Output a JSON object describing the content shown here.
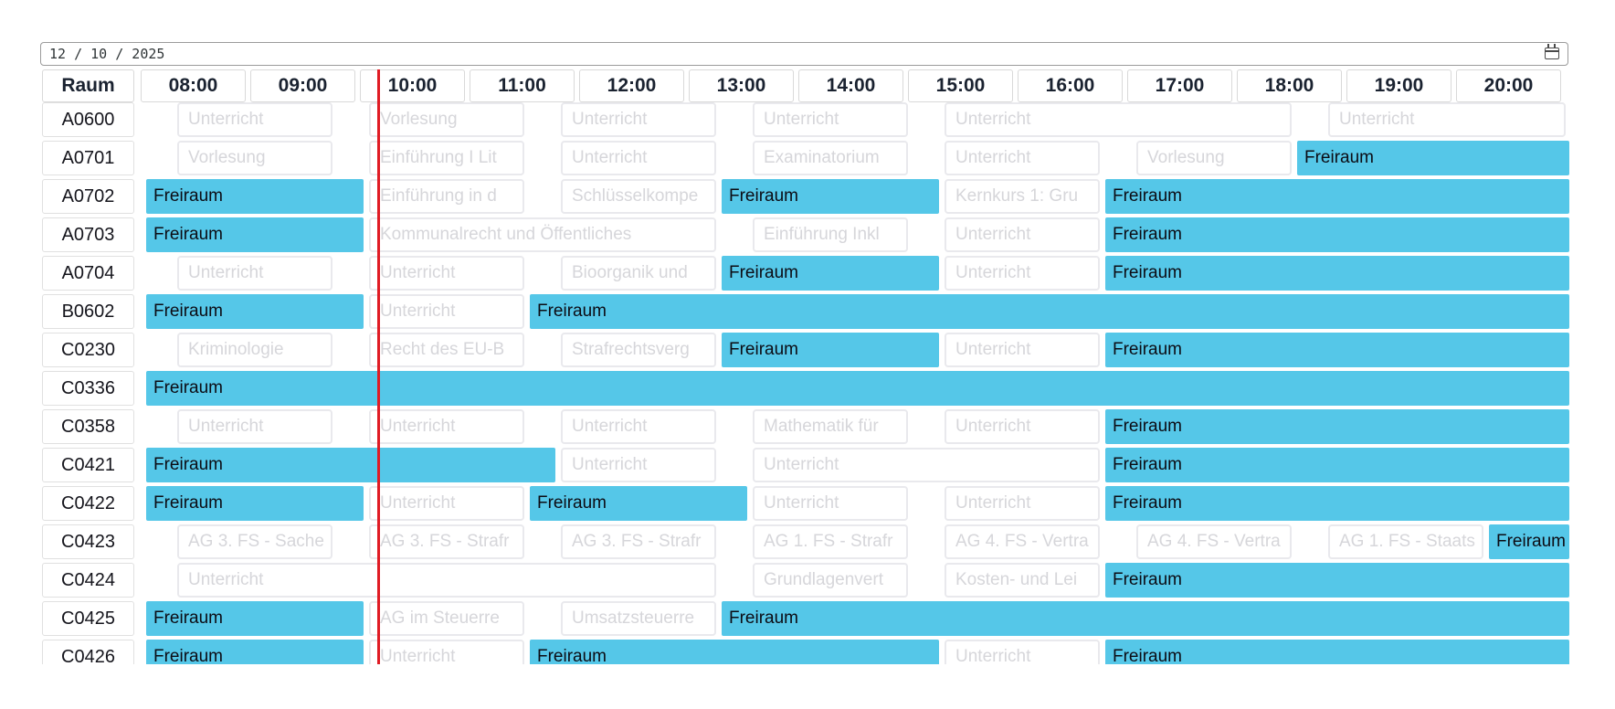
{
  "date_picker": {
    "value": "12 / 10 / 2025"
  },
  "colors": {
    "free_event": "#55c7e8",
    "now_line": "#e01b24",
    "busy_text": "#d6d6da",
    "busy_border": "#e9e9ed"
  },
  "schedule": {
    "room_column_label": "Raum",
    "time_labels": [
      "08:00",
      "09:00",
      "10:00",
      "11:00",
      "12:00",
      "13:00",
      "14:00",
      "15:00",
      "16:00",
      "17:00",
      "18:00",
      "19:00",
      "20:00"
    ],
    "timeline_start": "08:00",
    "timeline_end": "21:00",
    "now_marker_time": "10:07",
    "rooms": [
      {
        "name": "A0600",
        "events": [
          {
            "label": "Unterricht",
            "type": "busy",
            "start": "08:15",
            "end": "09:45"
          },
          {
            "label": "Vorlesung",
            "type": "busy",
            "start": "10:00",
            "end": "11:30"
          },
          {
            "label": "Unterricht",
            "type": "busy",
            "start": "11:45",
            "end": "13:15"
          },
          {
            "label": "Unterricht",
            "type": "busy",
            "start": "13:30",
            "end": "15:00"
          },
          {
            "label": "Unterricht",
            "type": "busy",
            "start": "15:15",
            "end": "18:30"
          },
          {
            "label": "Unterricht",
            "type": "busy",
            "start": "18:45",
            "end": "21:00"
          }
        ]
      },
      {
        "name": "A0701",
        "events": [
          {
            "label": "Vorlesung",
            "type": "busy",
            "start": "08:15",
            "end": "09:45"
          },
          {
            "label": "Einführung I Lit",
            "type": "busy",
            "start": "10:00",
            "end": "11:30"
          },
          {
            "label": "Unterricht",
            "type": "busy",
            "start": "11:45",
            "end": "13:15"
          },
          {
            "label": "Examinatorium",
            "type": "busy",
            "start": "13:30",
            "end": "15:00"
          },
          {
            "label": "Unterricht",
            "type": "busy",
            "start": "15:15",
            "end": "16:45"
          },
          {
            "label": "Vorlesung",
            "type": "busy",
            "start": "17:00",
            "end": "18:30"
          },
          {
            "label": "Freiraum",
            "type": "free",
            "start": "18:30",
            "end": "21:00"
          }
        ]
      },
      {
        "name": "A0702",
        "events": [
          {
            "label": "Freiraum",
            "type": "free",
            "start": "08:00",
            "end": "10:00"
          },
          {
            "label": "Einführung in d",
            "type": "busy",
            "start": "10:00",
            "end": "11:30"
          },
          {
            "label": "Schlüsselkompe",
            "type": "busy",
            "start": "11:45",
            "end": "13:15"
          },
          {
            "label": "Freiraum",
            "type": "free",
            "start": "13:15",
            "end": "15:15"
          },
          {
            "label": "Kernkurs 1: Gru",
            "type": "busy",
            "start": "15:15",
            "end": "16:45"
          },
          {
            "label": "Freiraum",
            "type": "free",
            "start": "16:45",
            "end": "21:00"
          }
        ]
      },
      {
        "name": "A0703",
        "events": [
          {
            "label": "Freiraum",
            "type": "free",
            "start": "08:00",
            "end": "10:00"
          },
          {
            "label": "Kommunalrecht und Öffentliches",
            "type": "busy",
            "start": "10:00",
            "end": "13:15"
          },
          {
            "label": "Einführung Inkl",
            "type": "busy",
            "start": "13:30",
            "end": "15:00"
          },
          {
            "label": "Unterricht",
            "type": "busy",
            "start": "15:15",
            "end": "16:45"
          },
          {
            "label": "Freiraum",
            "type": "free",
            "start": "16:45",
            "end": "21:00"
          }
        ]
      },
      {
        "name": "A0704",
        "events": [
          {
            "label": "Unterricht",
            "type": "busy",
            "start": "08:15",
            "end": "09:45"
          },
          {
            "label": "Unterricht",
            "type": "busy",
            "start": "10:00",
            "end": "11:30"
          },
          {
            "label": "Bioorganik und",
            "type": "busy",
            "start": "11:45",
            "end": "13:15"
          },
          {
            "label": "Freiraum",
            "type": "free",
            "start": "13:15",
            "end": "15:15"
          },
          {
            "label": "Unterricht",
            "type": "busy",
            "start": "15:15",
            "end": "16:45"
          },
          {
            "label": "Freiraum",
            "type": "free",
            "start": "16:45",
            "end": "21:00"
          }
        ]
      },
      {
        "name": "B0602",
        "events": [
          {
            "label": "Freiraum",
            "type": "free",
            "start": "08:00",
            "end": "10:00"
          },
          {
            "label": "Unterricht",
            "type": "busy",
            "start": "10:00",
            "end": "11:30"
          },
          {
            "label": "Freiraum",
            "type": "free",
            "start": "11:30",
            "end": "21:00"
          }
        ]
      },
      {
        "name": "C0230",
        "events": [
          {
            "label": "Kriminologie",
            "type": "busy",
            "start": "08:15",
            "end": "09:45"
          },
          {
            "label": "Recht des EU-B",
            "type": "busy",
            "start": "10:00",
            "end": "11:30"
          },
          {
            "label": "Strafrechtsverg",
            "type": "busy",
            "start": "11:45",
            "end": "13:15"
          },
          {
            "label": "Freiraum",
            "type": "free",
            "start": "13:15",
            "end": "15:15"
          },
          {
            "label": "Unterricht",
            "type": "busy",
            "start": "15:15",
            "end": "16:45"
          },
          {
            "label": "Freiraum",
            "type": "free",
            "start": "16:45",
            "end": "21:00"
          }
        ]
      },
      {
        "name": "C0336",
        "events": [
          {
            "label": "Freiraum",
            "type": "free",
            "start": "08:00",
            "end": "21:00"
          }
        ]
      },
      {
        "name": "C0358",
        "events": [
          {
            "label": "Unterricht",
            "type": "busy",
            "start": "08:15",
            "end": "09:45"
          },
          {
            "label": "Unterricht",
            "type": "busy",
            "start": "10:00",
            "end": "11:30"
          },
          {
            "label": "Unterricht",
            "type": "busy",
            "start": "11:45",
            "end": "13:15"
          },
          {
            "label": "Mathematik für",
            "type": "busy",
            "start": "13:30",
            "end": "15:00"
          },
          {
            "label": "Unterricht",
            "type": "busy",
            "start": "15:15",
            "end": "16:45"
          },
          {
            "label": "Freiraum",
            "type": "free",
            "start": "16:45",
            "end": "21:00"
          }
        ]
      },
      {
        "name": "C0421",
        "events": [
          {
            "label": "Freiraum",
            "type": "free",
            "start": "08:00",
            "end": "11:45"
          },
          {
            "label": "Unterricht",
            "type": "busy",
            "start": "11:45",
            "end": "13:15"
          },
          {
            "label": "Unterricht",
            "type": "busy",
            "start": "13:30",
            "end": "16:45"
          },
          {
            "label": "Freiraum",
            "type": "free",
            "start": "16:45",
            "end": "21:00"
          }
        ]
      },
      {
        "name": "C0422",
        "events": [
          {
            "label": "Freiraum",
            "type": "free",
            "start": "08:00",
            "end": "10:00"
          },
          {
            "label": "Unterricht",
            "type": "busy",
            "start": "10:00",
            "end": "11:30"
          },
          {
            "label": "Freiraum",
            "type": "free",
            "start": "11:30",
            "end": "13:30"
          },
          {
            "label": "Unterricht",
            "type": "busy",
            "start": "13:30",
            "end": "15:00"
          },
          {
            "label": "Unterricht",
            "type": "busy",
            "start": "15:15",
            "end": "16:45"
          },
          {
            "label": "Freiraum",
            "type": "free",
            "start": "16:45",
            "end": "21:00"
          }
        ]
      },
      {
        "name": "C0423",
        "events": [
          {
            "label": "AG 3. FS - Sache",
            "type": "busy",
            "start": "08:15",
            "end": "09:45"
          },
          {
            "label": "AG 3. FS - Strafr",
            "type": "busy",
            "start": "10:00",
            "end": "11:30"
          },
          {
            "label": "AG 3. FS - Strafr",
            "type": "busy",
            "start": "11:45",
            "end": "13:15"
          },
          {
            "label": "AG 1. FS - Strafr",
            "type": "busy",
            "start": "13:30",
            "end": "15:00"
          },
          {
            "label": "AG 4. FS - Vertra",
            "type": "busy",
            "start": "15:15",
            "end": "16:45"
          },
          {
            "label": "AG 4. FS - Vertra",
            "type": "busy",
            "start": "17:00",
            "end": "18:30"
          },
          {
            "label": "AG 1. FS - Staats",
            "type": "busy",
            "start": "18:45",
            "end": "20:15"
          },
          {
            "label": "Freiraum",
            "type": "free",
            "start": "20:15",
            "end": "21:00"
          }
        ]
      },
      {
        "name": "C0424",
        "events": [
          {
            "label": "Unterricht",
            "type": "busy",
            "start": "08:15",
            "end": "13:15"
          },
          {
            "label": "Grundlagenvert",
            "type": "busy",
            "start": "13:30",
            "end": "15:00"
          },
          {
            "label": "Kosten- und Lei",
            "type": "busy",
            "start": "15:15",
            "end": "16:45"
          },
          {
            "label": "Freiraum",
            "type": "free",
            "start": "16:45",
            "end": "21:00"
          }
        ]
      },
      {
        "name": "C0425",
        "events": [
          {
            "label": "Freiraum",
            "type": "free",
            "start": "08:00",
            "end": "10:00"
          },
          {
            "label": "AG im Steuerre",
            "type": "busy",
            "start": "10:00",
            "end": "11:30"
          },
          {
            "label": "Umsatzsteuerre",
            "type": "busy",
            "start": "11:45",
            "end": "13:15"
          },
          {
            "label": "Freiraum",
            "type": "free",
            "start": "13:15",
            "end": "21:00"
          }
        ]
      },
      {
        "name": "C0426",
        "events": [
          {
            "label": "Freiraum",
            "type": "free",
            "start": "08:00",
            "end": "10:00"
          },
          {
            "label": "Unterricht",
            "type": "busy",
            "start": "10:00",
            "end": "11:30"
          },
          {
            "label": "Freiraum",
            "type": "free",
            "start": "11:30",
            "end": "15:15"
          },
          {
            "label": "Unterricht",
            "type": "busy",
            "start": "15:15",
            "end": "16:45"
          },
          {
            "label": "Freiraum",
            "type": "free",
            "start": "16:45",
            "end": "21:00"
          }
        ]
      }
    ]
  }
}
